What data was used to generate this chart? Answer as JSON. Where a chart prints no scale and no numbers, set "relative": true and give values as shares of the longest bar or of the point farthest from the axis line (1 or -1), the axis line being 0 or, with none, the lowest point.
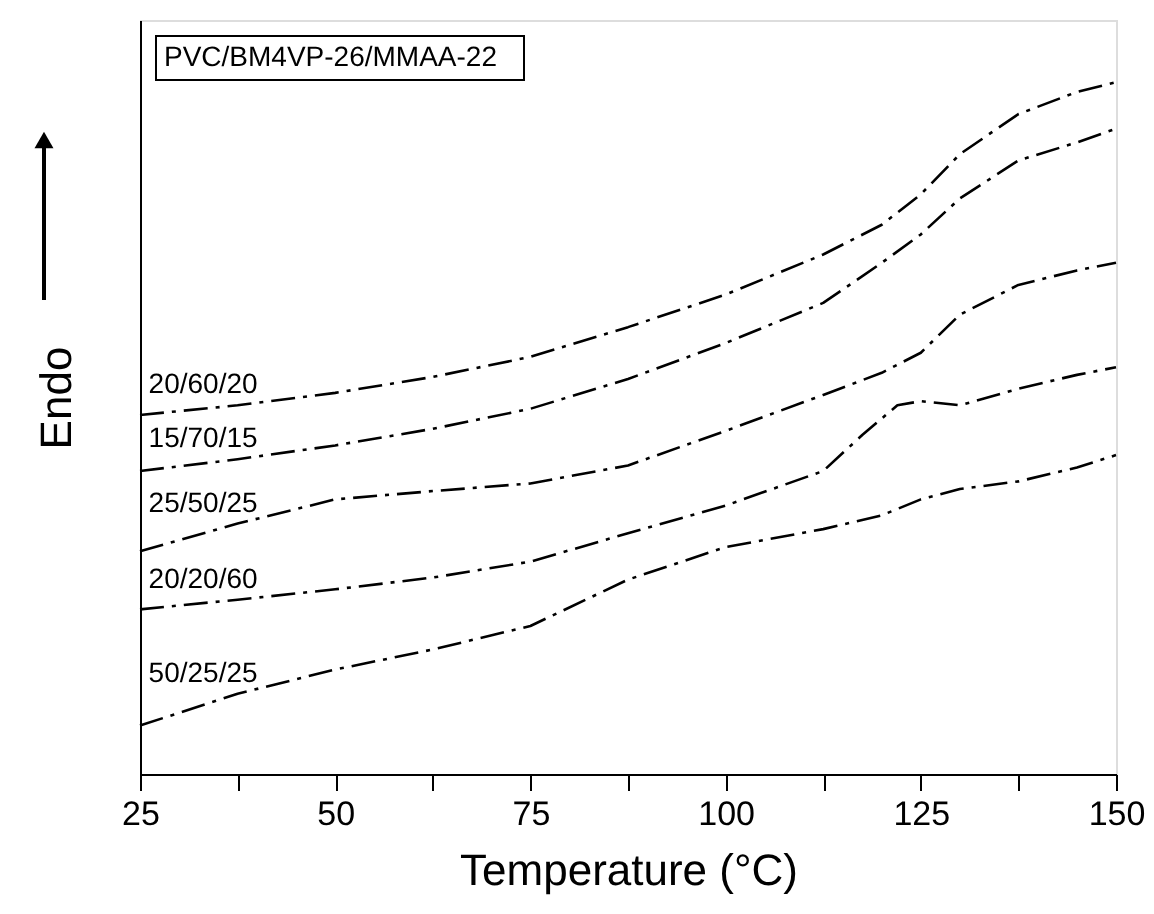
{
  "chart_data": {
    "type": "line",
    "relative": true,
    "xlabel": "Temperature (°C)",
    "ylabel": "Endo",
    "annotations": [
      "PVC/BM4VP-26/MMAA-22"
    ],
    "xlim": [
      25,
      150
    ],
    "xticks": [
      25,
      {
        "value": 37.5,
        "label": null
      },
      50,
      {
        "value": 62.5,
        "label": null
      },
      75,
      {
        "value": 87.5,
        "label": null
      },
      100,
      {
        "value": 112.5,
        "label": null
      },
      125,
      {
        "value": 137.5,
        "label": null
      },
      150
    ],
    "x": [
      25,
      37.5,
      50,
      62.5,
      75,
      87.5,
      100,
      112.5,
      120,
      125,
      130,
      137.5,
      145,
      150
    ],
    "marker": "none",
    "line_style": "dashed",
    "series": [
      {
        "name": "20/60/20",
        "color": "#000000",
        "values": [
          0.519,
          0.533,
          0.551,
          0.574,
          0.603,
          0.646,
          0.693,
          0.751,
          0.794,
          0.838,
          0.896,
          0.954,
          0.986,
          1.0
        ]
      },
      {
        "name": "15/70/15",
        "color": "#000000",
        "values": [
          0.438,
          0.455,
          0.475,
          0.499,
          0.528,
          0.571,
          0.623,
          0.681,
          0.739,
          0.78,
          0.832,
          0.887,
          0.913,
          0.933
        ]
      },
      {
        "name": "25/50/25",
        "color": "#000000",
        "values": [
          0.322,
          0.362,
          0.397,
          0.409,
          0.42,
          0.446,
          0.496,
          0.548,
          0.58,
          0.609,
          0.664,
          0.707,
          0.728,
          0.739
        ]
      },
      {
        "name": "20/20/60",
        "color": "#000000",
        "x": [
          25,
          37.5,
          50,
          62.5,
          75,
          87.5,
          100,
          112.5,
          117.5,
          122,
          125,
          130,
          137.5,
          145,
          150
        ],
        "values": [
          0.238,
          0.252,
          0.267,
          0.284,
          0.307,
          0.348,
          0.388,
          0.438,
          0.49,
          0.533,
          0.539,
          0.533,
          0.557,
          0.577,
          0.588
        ]
      },
      {
        "name": "50/25/25",
        "color": "#000000",
        "values": [
          0.07,
          0.116,
          0.151,
          0.18,
          0.214,
          0.281,
          0.328,
          0.354,
          0.374,
          0.397,
          0.412,
          0.423,
          0.443,
          0.461
        ]
      }
    ]
  }
}
